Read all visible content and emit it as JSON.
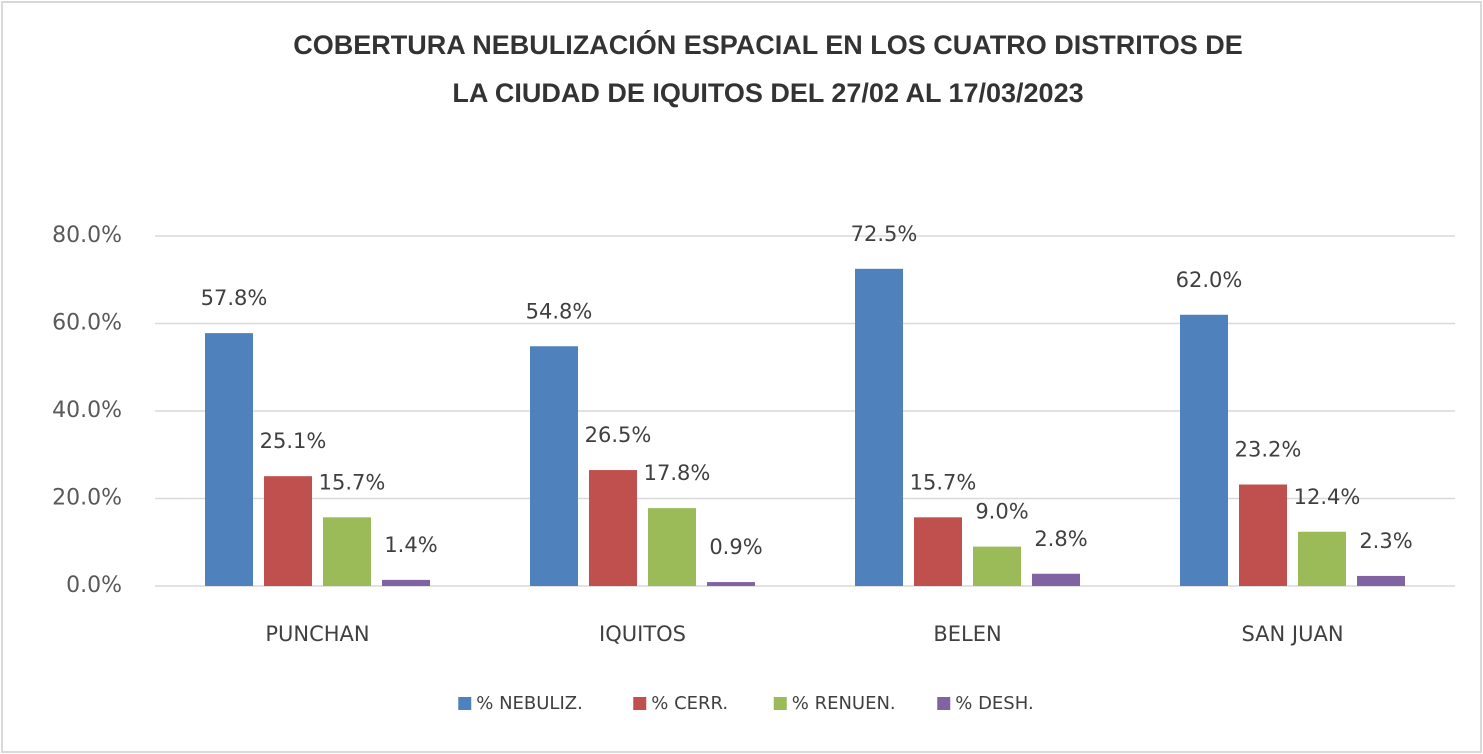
{
  "chart_data": {
    "type": "bar",
    "title": [
      "COBERTURA NEBULIZACIÓN ESPACIAL EN LOS CUATRO DISTRITOS DE",
      "LA CIUDAD DE IQUITOS DEL 27/02 AL 17/03/2023"
    ],
    "categories": [
      "PUNCHAN",
      "IQUITOS",
      "BELEN",
      "SAN JUAN"
    ],
    "series": [
      {
        "name": "% NEBULIZ.",
        "color": "#4f81bd",
        "values": [
          57.8,
          54.8,
          72.5,
          62.0
        ],
        "value_labels": [
          "57.8%",
          "54.8%",
          "72.5%",
          "62.0%"
        ]
      },
      {
        "name": "% CERR.",
        "color": "#c0504d",
        "values": [
          25.1,
          26.5,
          15.7,
          23.2
        ],
        "value_labels": [
          "25.1%",
          "26.5%",
          "15.7%",
          "23.2%"
        ]
      },
      {
        "name": "% RENUEN.",
        "color": "#9bbb59",
        "values": [
          15.7,
          17.8,
          9.0,
          12.4
        ],
        "value_labels": [
          "15.7%",
          "17.8%",
          "9.0%",
          "12.4%"
        ]
      },
      {
        "name": "% DESH.",
        "color": "#8064a2",
        "values": [
          1.4,
          0.9,
          2.8,
          2.3
        ],
        "value_labels": [
          "1.4%",
          "0.9%",
          "2.8%",
          "2.3%"
        ]
      }
    ],
    "ylim": [
      0,
      80
    ],
    "yticks": [
      {
        "value": 0,
        "label": "0.0%"
      },
      {
        "value": 20,
        "label": "20.0%"
      },
      {
        "value": 40,
        "label": "40.0%"
      },
      {
        "value": 60,
        "label": "60.0%"
      },
      {
        "value": 80,
        "label": "80.0%"
      }
    ],
    "grid": true,
    "legend": "bottom"
  }
}
